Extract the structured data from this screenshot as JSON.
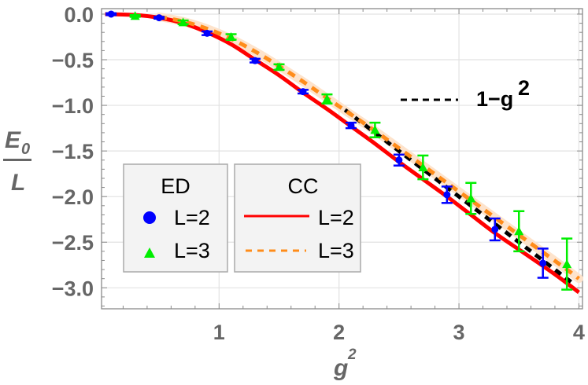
{
  "chart_data": {
    "type": "line",
    "title": "",
    "xlabel": "g",
    "xlabel_superscript": "2",
    "ylabel_numerator": "E",
    "ylabel_numerator_subscript": "0",
    "ylabel_denominator": "L",
    "xlim": [
      0.02,
      4.03
    ],
    "ylim": [
      -3.23,
      0.06
    ],
    "grid": true,
    "x_ticks": [
      1,
      2,
      3,
      4
    ],
    "x_tick_labels": [
      "1",
      "2",
      "3",
      "4"
    ],
    "y_ticks": [
      0.0,
      -0.5,
      -1.0,
      -1.5,
      -2.0,
      -2.5,
      -3.0
    ],
    "y_tick_labels": [
      "0.0",
      "−0.5",
      "−1.0",
      "−1.5",
      "−2.0",
      "−2.5",
      "−3.0"
    ],
    "series": [
      {
        "name": "CC L=2",
        "group": "CC",
        "style": "solid",
        "color": "#ff0000",
        "x": [
          0.05,
          0.3,
          0.5,
          0.7,
          0.9,
          1.1,
          1.3,
          1.5,
          1.7,
          1.9,
          2.1,
          2.3,
          2.5,
          2.7,
          2.9,
          3.1,
          3.3,
          3.5,
          3.7,
          3.85,
          4.0
        ],
        "y": [
          0.0,
          -0.01,
          -0.04,
          -0.1,
          -0.2,
          -0.33,
          -0.5,
          -0.67,
          -0.86,
          -1.04,
          -1.23,
          -1.42,
          -1.62,
          -1.81,
          -2.0,
          -2.2,
          -2.4,
          -2.58,
          -2.76,
          -2.9,
          -3.05
        ]
      },
      {
        "name": "CC L=3",
        "group": "CC",
        "style": "dashed",
        "color": "#ff8c1a",
        "x": [
          0.5,
          0.7,
          0.9,
          1.1,
          1.3,
          1.5,
          1.7,
          1.9,
          2.1,
          2.3,
          2.5,
          2.7,
          2.9,
          3.1,
          3.3,
          3.5,
          3.7,
          3.9,
          4.0
        ],
        "y": [
          -0.03,
          -0.08,
          -0.16,
          -0.27,
          -0.41,
          -0.57,
          -0.74,
          -0.92,
          -1.1,
          -1.28,
          -1.47,
          -1.66,
          -1.85,
          -2.04,
          -2.23,
          -2.42,
          -2.61,
          -2.8,
          -2.9
        ]
      },
      {
        "name": "1−g²",
        "group": "reference",
        "style": "dashed",
        "color": "#000000",
        "x": [
          2.05,
          3.97
        ],
        "y": [
          -1.05,
          -2.97
        ]
      },
      {
        "name": "ED L=2",
        "group": "ED",
        "style": "markers-circle",
        "color": "#0000ff",
        "x": [
          0.1,
          0.5,
          0.9,
          1.3,
          1.7,
          2.1,
          2.5,
          2.9,
          3.3,
          3.7
        ],
        "y": [
          0.0,
          -0.04,
          -0.21,
          -0.51,
          -0.85,
          -1.22,
          -1.6,
          -1.98,
          -2.36,
          -2.73
        ],
        "err": [
          0.01,
          0.01,
          0.02,
          0.02,
          0.02,
          0.03,
          0.06,
          0.09,
          0.12,
          0.16
        ]
      },
      {
        "name": "ED L=3",
        "group": "ED",
        "style": "markers-triangle",
        "color": "#00ee00",
        "x": [
          0.3,
          0.7,
          1.1,
          1.5,
          1.9,
          2.3,
          2.7,
          3.1,
          3.5,
          3.9
        ],
        "y": [
          -0.02,
          -0.09,
          -0.25,
          -0.58,
          -0.93,
          -1.27,
          -1.68,
          -2.02,
          -2.38,
          -2.74
        ],
        "err": [
          0.01,
          0.02,
          0.03,
          0.03,
          0.05,
          0.08,
          0.13,
          0.17,
          0.22,
          0.28
        ]
      }
    ],
    "legend": {
      "position": "lower-left inside plot",
      "boxes": [
        {
          "title": "ED",
          "entries": [
            {
              "label": "L=2",
              "marker": "circle",
              "color": "#0000ff"
            },
            {
              "label": "L=3",
              "marker": "triangle",
              "color": "#00ee00"
            }
          ]
        },
        {
          "title": "CC",
          "entries": [
            {
              "label": "L=2",
              "line": "solid",
              "color": "#ff0000"
            },
            {
              "label": "L=3",
              "line": "dashed",
              "color": "#ff8c1a"
            }
          ]
        }
      ]
    },
    "annotation": {
      "label": "1−g",
      "superscript": "2",
      "line": "dashed",
      "color": "#000000"
    }
  }
}
